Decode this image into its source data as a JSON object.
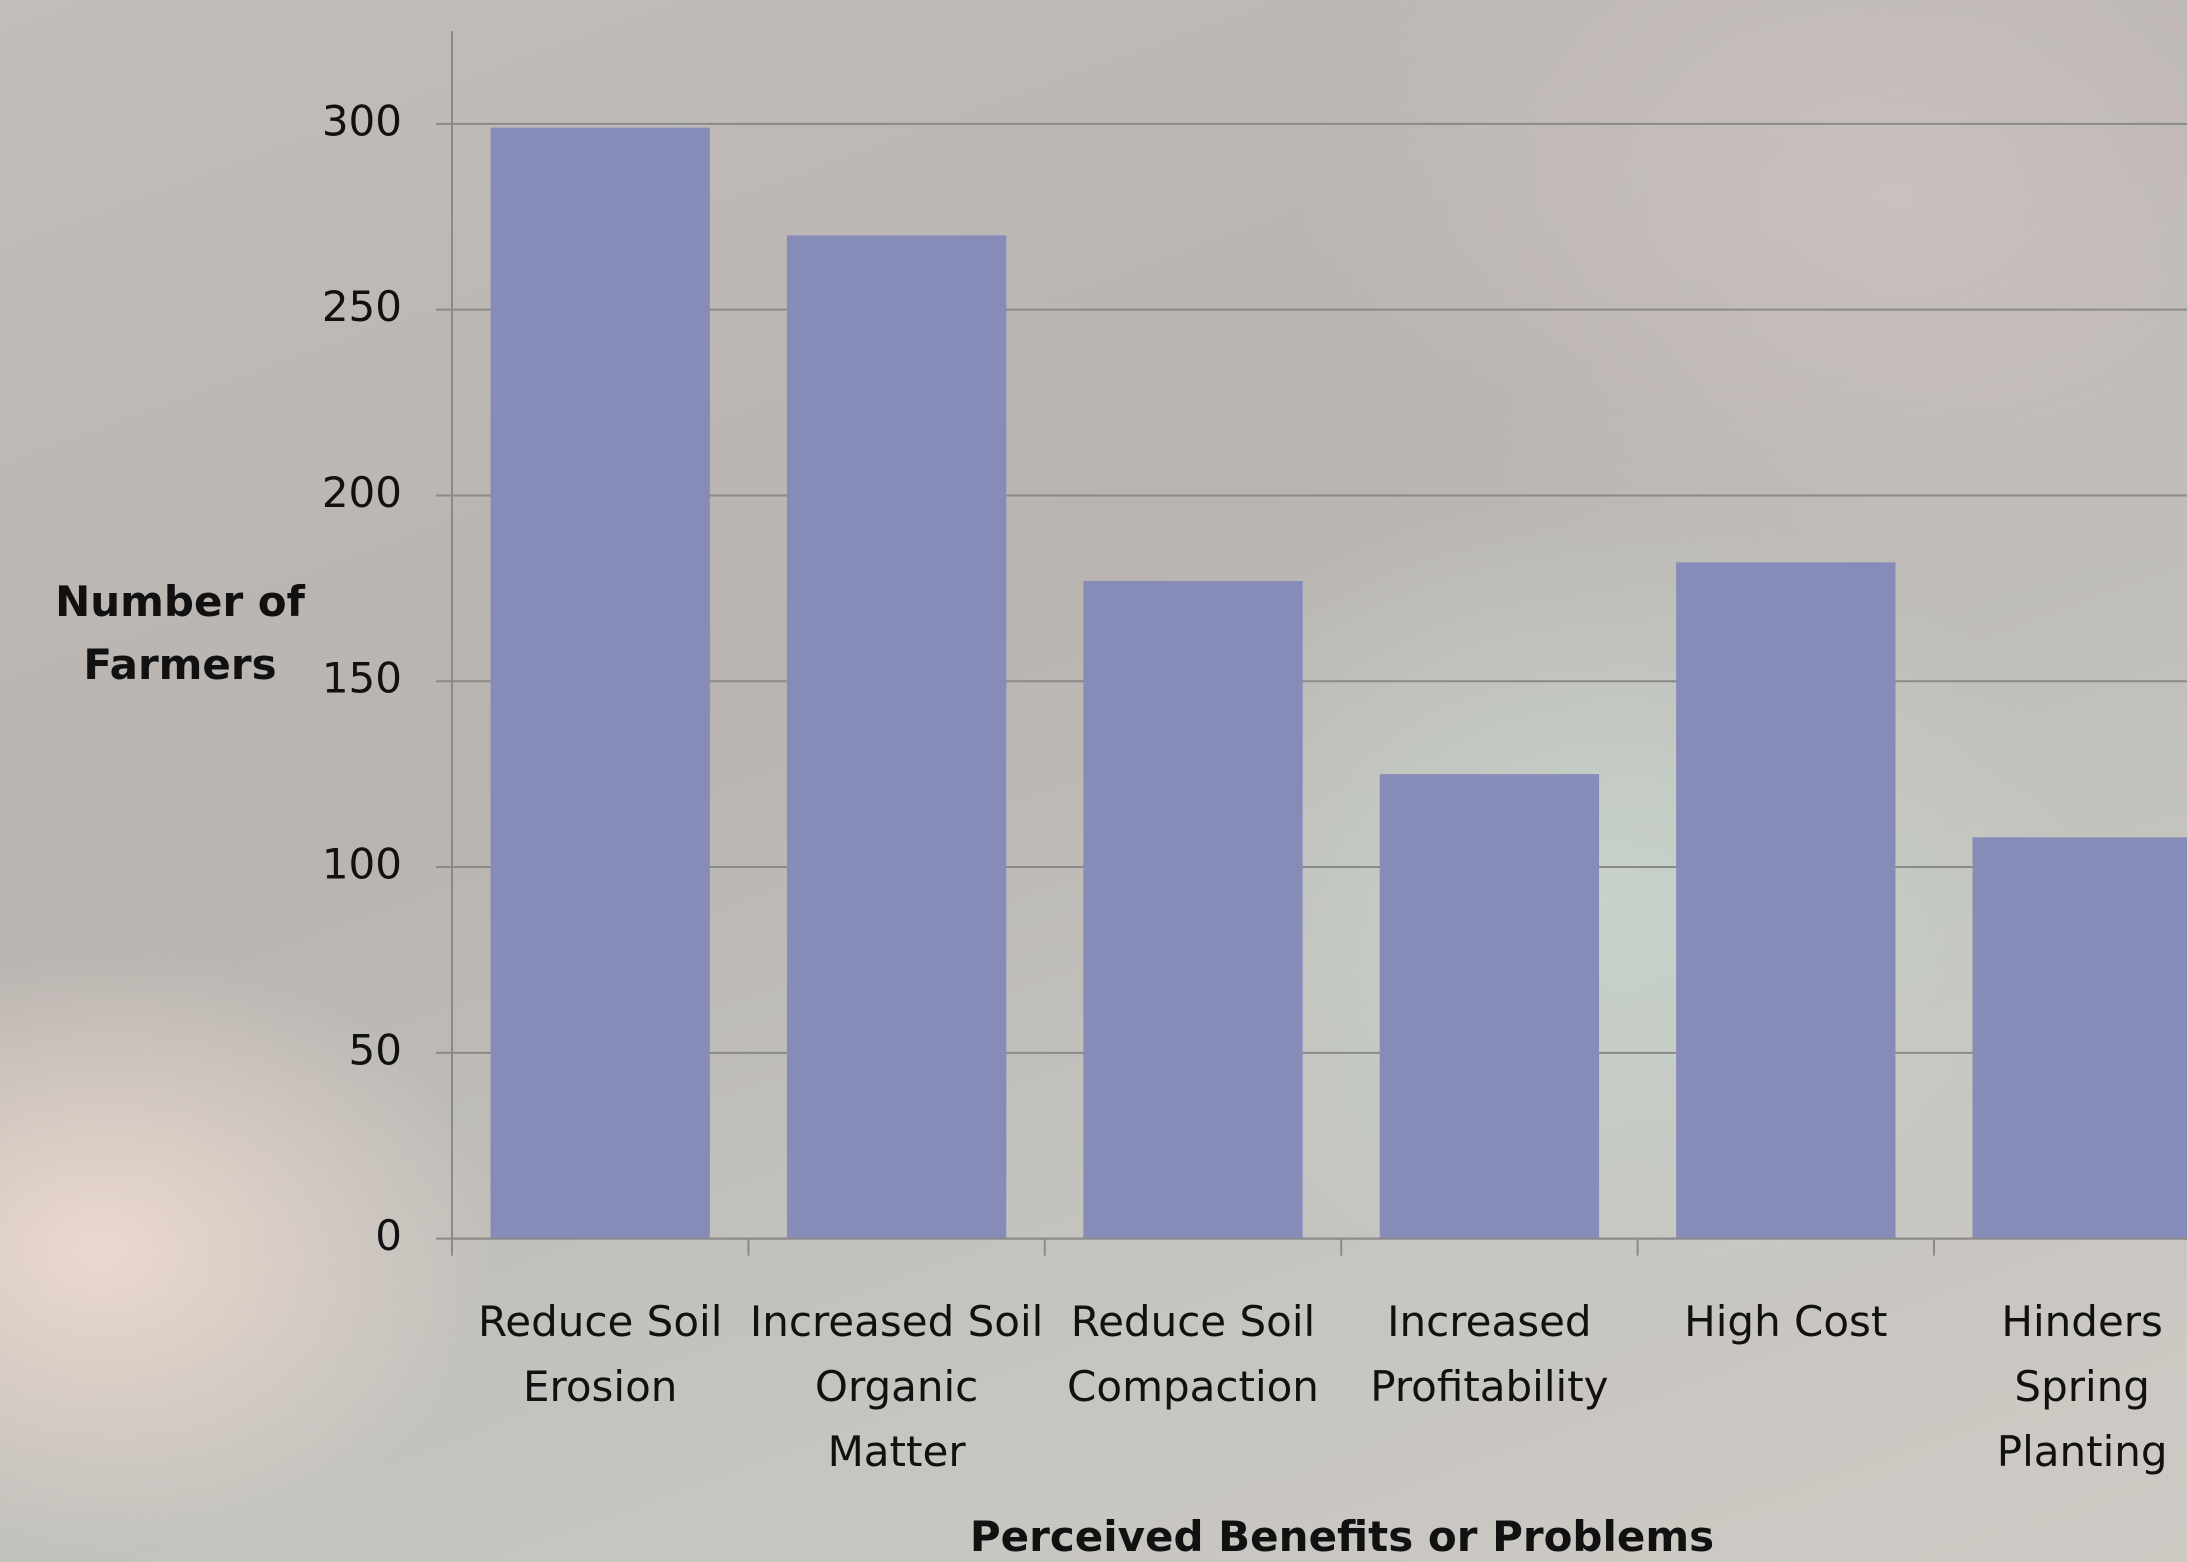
{
  "chart_data": {
    "type": "bar",
    "x_label": "Perceived Benefits or Problems",
    "y_label": "Number of Farmers",
    "categories": [
      "Reduce Soil Erosion",
      "Increased Soil Organic Matter",
      "Reduce Soil Compaction",
      "Increased Profitability",
      "High Cost",
      "Hinders Spring Planting"
    ],
    "values": [
      299,
      270,
      177,
      125,
      182,
      108
    ],
    "color": "#878bb8",
    "ylim": [
      0,
      325
    ],
    "yticks": [
      0,
      50,
      100,
      150,
      200,
      250,
      300
    ],
    "grid": true
  }
}
